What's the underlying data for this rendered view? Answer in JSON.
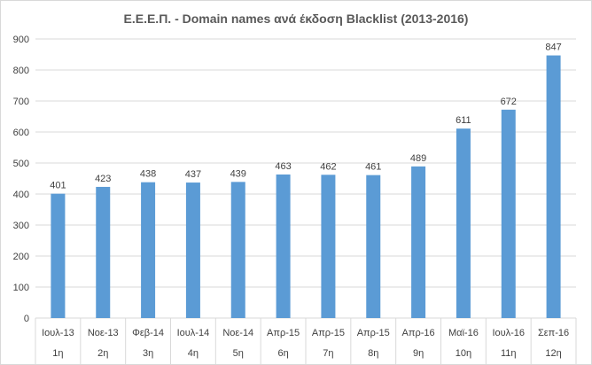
{
  "chart_data": {
    "type": "bar",
    "title": "Ε.Ε.Ε.Π. - Domain names ανά έκδοση Blacklist (2013-2016)",
    "categories": [
      "Ιουλ-13",
      "Νοε-13",
      "Φεβ-14",
      "Ιουλ-14",
      "Νοε-14",
      "Απρ-15",
      "Απρ-15",
      "Απρ-15",
      "Απρ-16",
      "Μαϊ-16",
      "Ιουλ-16",
      "Σεπ-16"
    ],
    "edition_labels": [
      "1η",
      "2η",
      "3η",
      "4η",
      "5η",
      "6η",
      "7η",
      "8η",
      "9η",
      "10η",
      "11η",
      "12η"
    ],
    "values": [
      401,
      423,
      438,
      437,
      439,
      463,
      462,
      461,
      489,
      611,
      672,
      847
    ],
    "ylim": [
      0,
      900
    ],
    "yticks": [
      0,
      100,
      200,
      300,
      400,
      500,
      600,
      700,
      800,
      900
    ],
    "grid": true,
    "legend": "none",
    "xlabel": "",
    "ylabel": "",
    "bar_color": "#5b9bd5",
    "grid_color": "#d9d9d9",
    "text_color": "#404040",
    "title_color": "#595959"
  }
}
